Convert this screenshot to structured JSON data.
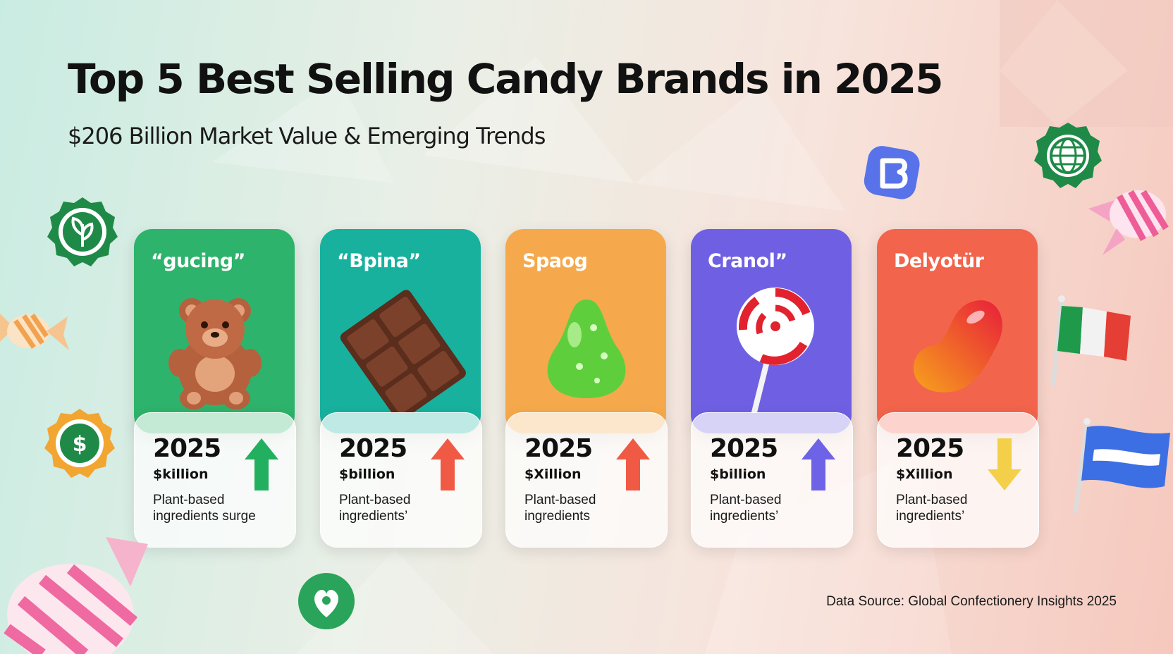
{
  "header": {
    "title": "Top 5 Best Selling Candy Brands in 2025",
    "subtitle": "$206 Billion Market Value & Emerging Trends"
  },
  "cards": [
    {
      "brand": "“gucing”",
      "candy_icon": "teddy-bear-gummy-icon",
      "color": "#2db36b",
      "year": "2025",
      "value": "$killion",
      "note": "Plant-based ingredients surge",
      "trend": "up",
      "trend_color": "#22b060"
    },
    {
      "brand": "“Bpina”",
      "candy_icon": "chocolate-bar-icon",
      "color": "#17b19e",
      "year": "2025",
      "value": "$billion",
      "note": "Plant-based ingredients’",
      "trend": "up",
      "trend_color": "#f05a44"
    },
    {
      "brand": "Spaog",
      "candy_icon": "green-gumdrop-icon",
      "color": "#f5a94c",
      "year": "2025",
      "value": "$Xillion",
      "note": "Plant-based ingredients",
      "trend": "up",
      "trend_color": "#f05a44"
    },
    {
      "brand": "Cranol”",
      "candy_icon": "lollipop-icon",
      "color": "#6f60e3",
      "year": "2025",
      "value": "$billion",
      "note": "Plant-based ingredients’",
      "trend": "up",
      "trend_color": "#6e63e6"
    },
    {
      "brand": "Delyotür",
      "candy_icon": "jelly-bean-icon",
      "color": "#f2644b",
      "year": "2025",
      "value": "$Xillion",
      "note": "Plant-based ingredients’",
      "trend": "down",
      "trend_color": "#f4cf4a"
    }
  ],
  "decorations": {
    "badges": [
      "leaf-badge-icon",
      "dollar-leaf-badge-icon",
      "globe-badge-icon",
      "b-app-icon",
      "heart-leaf-icon"
    ],
    "candies": [
      "striped-candy-icon"
    ],
    "flags": [
      "italy-flag-icon",
      "blue-flag-icon"
    ]
  },
  "footer": {
    "source": "Data Source: Global Confectionery Insights 2025"
  }
}
